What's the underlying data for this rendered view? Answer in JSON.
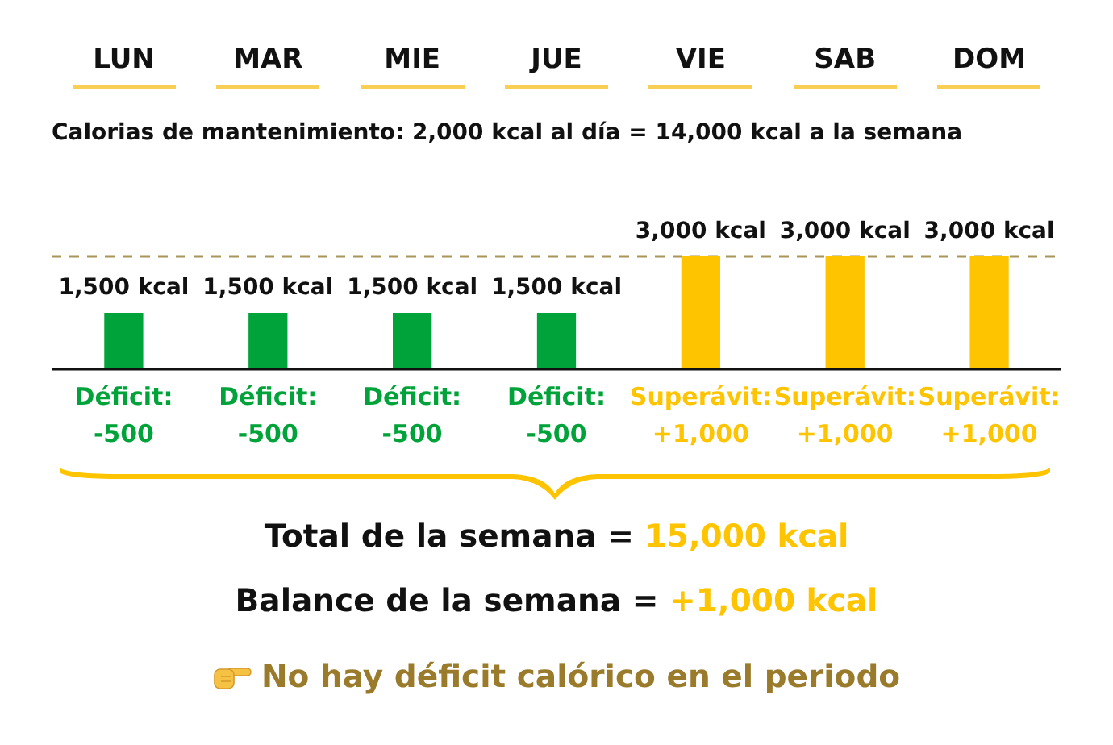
{
  "chart_data": {
    "type": "bar",
    "title": "Calorias de mantenimiento: 2,000 kcal al día = 14,000 kcal a la semana",
    "categories": [
      "LUN",
      "MAR",
      "MIE",
      "JUE",
      "VIE",
      "SAB",
      "DOM"
    ],
    "values": [
      1500,
      1500,
      1500,
      1500,
      3000,
      3000,
      3000
    ],
    "colors": [
      "#00a33a",
      "#00a33a",
      "#00a33a",
      "#00a33a",
      "#ffc400",
      "#ffc400",
      "#ffc400"
    ],
    "value_labels": [
      "1,500 kcal",
      "1,500 kcal",
      "1,500 kcal",
      "1,500 kcal",
      "3,000 kcal",
      "3,000 kcal",
      "3,000 kcal"
    ],
    "ylim": [
      0,
      3000
    ],
    "ref_lines": [
      {
        "axis": "y",
        "value": 3000,
        "color": "#a8955a",
        "line_style": "dashed"
      }
    ],
    "annotations": [
      "Déficit: -500",
      "Déficit: -500",
      "Déficit: -500",
      "Déficit: -500",
      "Superávit: +1,000",
      "Superávit: +1,000",
      "Superávit: +1,000",
      "Total de la semana = 15,000 kcal",
      "Balance de la semana = +1,000 kcal",
      "No hay déficit calórico en el periodo"
    ],
    "tick_labels": "x",
    "grid": false,
    "legend": false
  }
}
